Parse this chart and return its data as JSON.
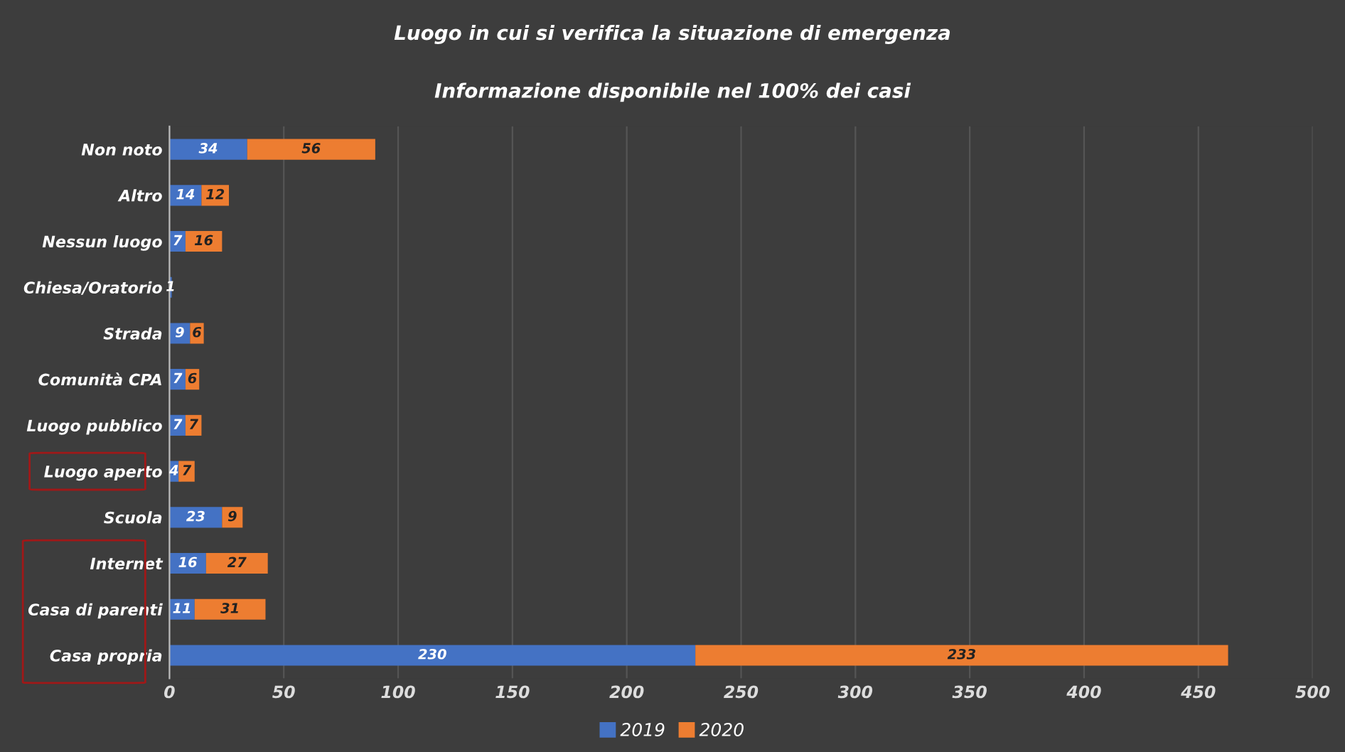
{
  "chart_data": {
    "type": "bar",
    "orientation": "horizontal",
    "stacked": true,
    "title": "Luogo in cui si verifica la situazione di emergenza",
    "subtitle": "Informazione disponibile nel 100% dei casi",
    "categories": [
      "Non noto",
      "Altro",
      "Nessun luogo",
      "Chiesa/Oratorio",
      "Strada",
      "Comunità CPA",
      "Luogo pubblico",
      "Luogo aperto",
      "Scuola",
      "Internet",
      "Casa di parenti",
      "Casa propria"
    ],
    "series": [
      {
        "name": "2019",
        "color": "#4472c4",
        "values": [
          34,
          14,
          7,
          1,
          9,
          7,
          7,
          4,
          23,
          16,
          11,
          230
        ],
        "value_labels": [
          "34",
          "14",
          "7",
          "1",
          "9",
          "7",
          "7",
          "4",
          "23",
          "16",
          "11",
          "230"
        ]
      },
      {
        "name": "2020",
        "color": "#ed7d31",
        "values": [
          56,
          12,
          16,
          0,
          6,
          6,
          7,
          7,
          9,
          27,
          31,
          233
        ],
        "value_labels": [
          "56",
          "12",
          "16",
          null,
          "6",
          "6",
          "7",
          "7",
          "9",
          "27",
          "31",
          "233"
        ]
      }
    ],
    "xlim": [
      0,
      500
    ],
    "xticks": [
      0,
      50,
      100,
      150,
      200,
      250,
      300,
      350,
      400,
      450,
      500
    ],
    "grid": "x",
    "legend": "bottom"
  }
}
